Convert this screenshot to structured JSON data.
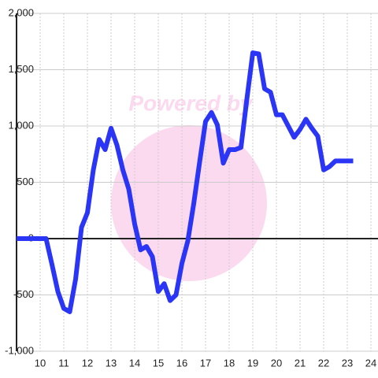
{
  "chart_data": {
    "type": "line",
    "watermark": "Powered by",
    "x": [
      9,
      10.25,
      10.5,
      10.75,
      11,
      11.25,
      11.5,
      11.75,
      12,
      12.25,
      12.5,
      12.75,
      13,
      13.25,
      13.5,
      13.75,
      14,
      14.25,
      14.5,
      14.75,
      15,
      15.25,
      15.5,
      15.75,
      16,
      16.25,
      16.5,
      16.75,
      17,
      17.25,
      17.5,
      17.75,
      18,
      18.25,
      18.5,
      18.75,
      19,
      19.25,
      19.5,
      19.75,
      20,
      20.25,
      20.5,
      20.75,
      21,
      21.25,
      21.5,
      21.75,
      22,
      22.25,
      22.5,
      22.75,
      23,
      23.25
    ],
    "series": [
      {
        "color": "#2b35f5",
        "values": [
          0,
          0,
          -230,
          -470,
          -620,
          -650,
          -360,
          100,
          230,
          610,
          880,
          790,
          980,
          830,
          610,
          440,
          130,
          -100,
          -70,
          -160,
          -470,
          -400,
          -550,
          -500,
          -220,
          -20,
          310,
          680,
          1040,
          1120,
          1010,
          670,
          790,
          790,
          810,
          1240,
          1650,
          1640,
          1330,
          1300,
          1100,
          1100,
          1000,
          900,
          970,
          1060,
          980,
          910,
          610,
          640,
          690,
          690,
          690,
          690
        ]
      }
    ],
    "xlim": [
      9,
      24.3
    ],
    "xticks": [
      10,
      11,
      12,
      13,
      14,
      15,
      16,
      17,
      18,
      19,
      20,
      21,
      22,
      23,
      24
    ],
    "ylim": [
      -1000,
      2000
    ],
    "yticks": [
      {
        "value": -1000,
        "label": "-1,000"
      },
      -500,
      0,
      500,
      {
        "value": 1000,
        "label": "1,000"
      },
      {
        "value": 1500,
        "label": "1,500"
      },
      {
        "value": 2000,
        "label": "2,000"
      }
    ],
    "grid": true
  }
}
